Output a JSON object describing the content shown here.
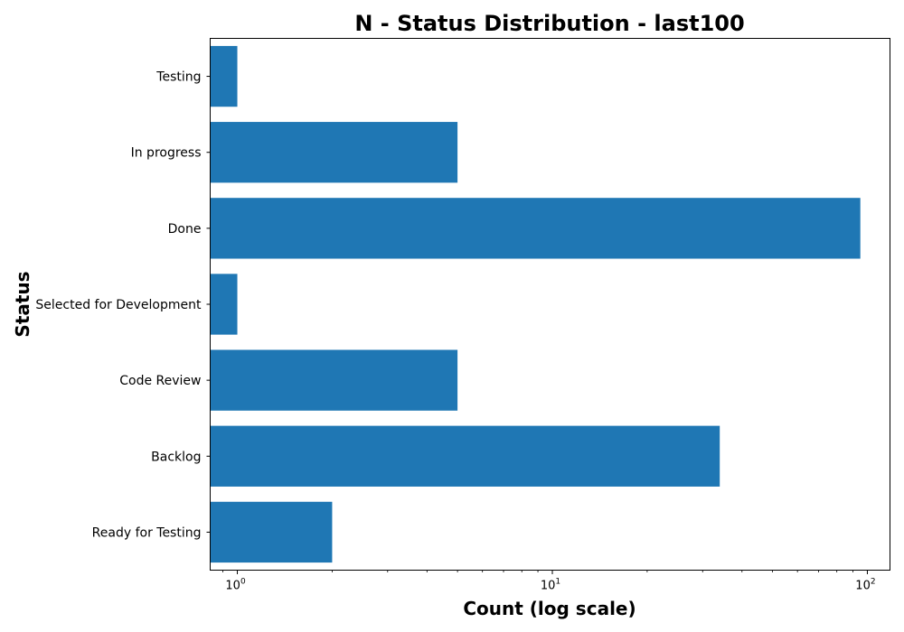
{
  "chart_data": {
    "type": "bar",
    "orientation": "horizontal",
    "title": "N - Status Distribution - last100",
    "xlabel": "Count (log scale)",
    "ylabel": "Status",
    "x_scale": "log",
    "xlim": [
      0.82,
      118
    ],
    "categories": [
      "Testing",
      "In progress",
      "Done",
      "Selected for Development",
      "Code Review",
      "Backlog",
      "Ready for Testing"
    ],
    "values": [
      1,
      5,
      95,
      1,
      5,
      34,
      2
    ],
    "x_ticks": [
      {
        "base": "10",
        "exp": "0",
        "value": 1
      },
      {
        "base": "10",
        "exp": "1",
        "value": 10
      },
      {
        "base": "10",
        "exp": "2",
        "value": 100
      }
    ],
    "bar_color": "#1f77b4",
    "grid": false,
    "legend": "none"
  }
}
